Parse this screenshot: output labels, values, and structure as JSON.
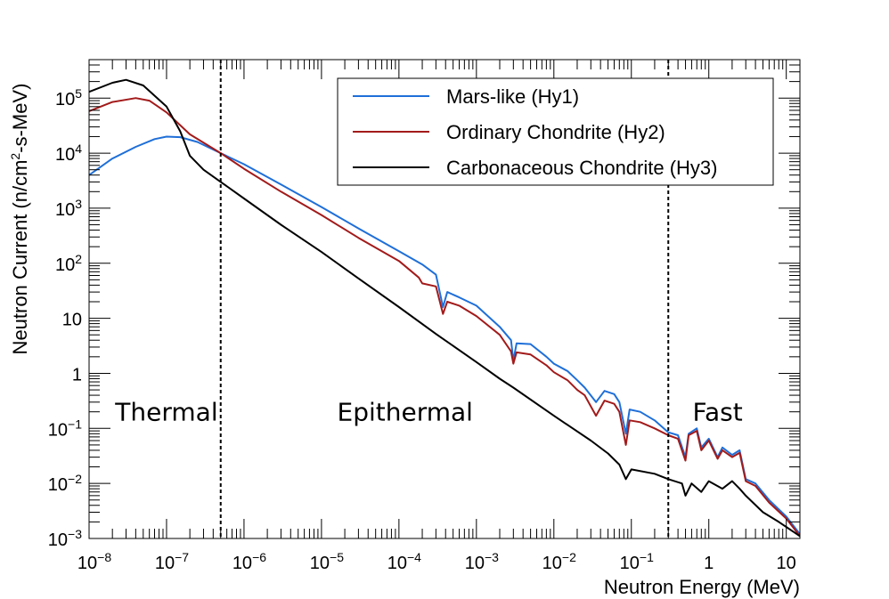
{
  "chart_data": {
    "type": "line",
    "xlabel": "Neutron Energy (MeV)",
    "ylabel_prefix": "Neutron Current (n/cm",
    "ylabel_sup": "2",
    "ylabel_suffix": "-s-MeV)",
    "xscale": "log",
    "yscale": "log",
    "xlim": [
      1e-08,
      15
    ],
    "ylim": [
      0.001,
      500000
    ],
    "x_ticks": [
      {
        "value": 1e-08,
        "base": "10",
        "exp": "−8"
      },
      {
        "value": 1e-07,
        "base": "10",
        "exp": "−7"
      },
      {
        "value": 1e-06,
        "base": "10",
        "exp": "−6"
      },
      {
        "value": 1e-05,
        "base": "10",
        "exp": "−5"
      },
      {
        "value": 0.0001,
        "base": "10",
        "exp": "−4"
      },
      {
        "value": 0.001,
        "base": "10",
        "exp": "−3"
      },
      {
        "value": 0.01,
        "base": "10",
        "exp": "−2"
      },
      {
        "value": 0.1,
        "base": "10",
        "exp": "−1"
      },
      {
        "value": 1,
        "base": "1",
        "exp": ""
      },
      {
        "value": 10,
        "base": "10",
        "exp": ""
      }
    ],
    "y_ticks": [
      {
        "value": 0.001,
        "base": "10",
        "exp": "−3"
      },
      {
        "value": 0.01,
        "base": "10",
        "exp": "−2"
      },
      {
        "value": 0.1,
        "base": "10",
        "exp": "−1"
      },
      {
        "value": 1,
        "base": "1",
        "exp": ""
      },
      {
        "value": 10,
        "base": "10",
        "exp": ""
      },
      {
        "value": 100,
        "base": "10",
        "exp": "2"
      },
      {
        "value": 1000,
        "base": "10",
        "exp": "3"
      },
      {
        "value": 10000,
        "base": "10",
        "exp": "4"
      },
      {
        "value": 100000,
        "base": "10",
        "exp": "5"
      }
    ],
    "vlines": [
      5e-07,
      0.3
    ],
    "regions": [
      {
        "label": "Thermal",
        "x": 1e-07,
        "y": 0.2
      },
      {
        "label": "Epithermal",
        "x": 0.00012,
        "y": 0.2
      },
      {
        "label": "Fast",
        "x": 1.3,
        "y": 0.2
      }
    ],
    "legend": {
      "position": "top-right"
    },
    "series": [
      {
        "name": "Mars-like (Hy1)",
        "color": "#1f6fd8",
        "points": [
          [
            1e-08,
            4000
          ],
          [
            2e-08,
            8000
          ],
          [
            4e-08,
            13000
          ],
          [
            7e-08,
            18000
          ],
          [
            1e-07,
            20000
          ],
          [
            1.5e-07,
            19500
          ],
          [
            2.5e-07,
            16000
          ],
          [
            5e-07,
            10000
          ],
          [
            1e-06,
            6300
          ],
          [
            3e-06,
            2700
          ],
          [
            1e-05,
            1050
          ],
          [
            3e-05,
            430
          ],
          [
            0.0001,
            165
          ],
          [
            0.0002,
            95
          ],
          [
            0.0003,
            62
          ],
          [
            0.00037,
            16
          ],
          [
            0.00042,
            30
          ],
          [
            0.0006,
            24
          ],
          [
            0.001,
            17
          ],
          [
            0.002,
            7
          ],
          [
            0.0028,
            4
          ],
          [
            0.003,
            1.7
          ],
          [
            0.0033,
            3.5
          ],
          [
            0.005,
            3.4
          ],
          [
            0.008,
            2
          ],
          [
            0.01,
            1.5
          ],
          [
            0.015,
            1.1
          ],
          [
            0.02,
            0.75
          ],
          [
            0.025,
            0.55
          ],
          [
            0.035,
            0.3
          ],
          [
            0.045,
            0.48
          ],
          [
            0.06,
            0.42
          ],
          [
            0.07,
            0.3
          ],
          [
            0.085,
            0.08
          ],
          [
            0.095,
            0.22
          ],
          [
            0.13,
            0.2
          ],
          [
            0.2,
            0.14
          ],
          [
            0.3,
            0.085
          ],
          [
            0.4,
            0.075
          ],
          [
            0.5,
            0.03
          ],
          [
            0.55,
            0.08
          ],
          [
            0.7,
            0.1
          ],
          [
            0.8,
            0.045
          ],
          [
            1.0,
            0.065
          ],
          [
            1.3,
            0.03
          ],
          [
            1.5,
            0.045
          ],
          [
            2.0,
            0.033
          ],
          [
            2.5,
            0.04
          ],
          [
            3,
            0.012
          ],
          [
            4,
            0.01
          ],
          [
            6,
            0.005
          ],
          [
            10,
            0.0025
          ],
          [
            15,
            0.0012
          ]
        ]
      },
      {
        "name": "Ordinary Chondrite (Hy2)",
        "color": "#a31a1a",
        "points": [
          [
            1e-08,
            58000
          ],
          [
            2e-08,
            85000
          ],
          [
            4e-08,
            100000
          ],
          [
            6e-08,
            90000
          ],
          [
            1e-07,
            55000
          ],
          [
            2e-07,
            22000
          ],
          [
            5e-07,
            10000
          ],
          [
            1e-06,
            5200
          ],
          [
            3e-06,
            2000
          ],
          [
            1e-05,
            750
          ],
          [
            3e-05,
            290
          ],
          [
            0.0001,
            110
          ],
          [
            0.00018,
            55
          ],
          [
            0.0002,
            43
          ],
          [
            0.0003,
            38
          ],
          [
            0.00037,
            12
          ],
          [
            0.00042,
            20
          ],
          [
            0.0006,
            17
          ],
          [
            0.001,
            11
          ],
          [
            0.002,
            5
          ],
          [
            0.0028,
            2.5
          ],
          [
            0.003,
            1.5
          ],
          [
            0.0033,
            2.4
          ],
          [
            0.005,
            2.2
          ],
          [
            0.008,
            1.4
          ],
          [
            0.01,
            1.05
          ],
          [
            0.015,
            0.75
          ],
          [
            0.02,
            0.5
          ],
          [
            0.025,
            0.4
          ],
          [
            0.035,
            0.17
          ],
          [
            0.045,
            0.32
          ],
          [
            0.06,
            0.28
          ],
          [
            0.07,
            0.2
          ],
          [
            0.085,
            0.05
          ],
          [
            0.095,
            0.14
          ],
          [
            0.13,
            0.13
          ],
          [
            0.2,
            0.1
          ],
          [
            0.3,
            0.075
          ],
          [
            0.4,
            0.065
          ],
          [
            0.5,
            0.026
          ],
          [
            0.55,
            0.075
          ],
          [
            0.7,
            0.09
          ],
          [
            0.8,
            0.04
          ],
          [
            1.0,
            0.06
          ],
          [
            1.3,
            0.028
          ],
          [
            1.5,
            0.04
          ],
          [
            2.0,
            0.03
          ],
          [
            2.5,
            0.036
          ],
          [
            3,
            0.011
          ],
          [
            4,
            0.009
          ],
          [
            6,
            0.0045
          ],
          [
            10,
            0.0023
          ],
          [
            15,
            0.0011
          ]
        ]
      },
      {
        "name": "Carbonaceous Chondrite (Hy3)",
        "color": "#000000",
        "points": [
          [
            1e-08,
            130000
          ],
          [
            2e-08,
            190000
          ],
          [
            3e-08,
            215000
          ],
          [
            5e-08,
            170000
          ],
          [
            1e-07,
            70000
          ],
          [
            1.5e-07,
            25000
          ],
          [
            2e-07,
            9000
          ],
          [
            3e-07,
            5000
          ],
          [
            5e-07,
            3000
          ],
          [
            1e-06,
            1500
          ],
          [
            3e-06,
            500
          ],
          [
            1e-05,
            160
          ],
          [
            3e-05,
            53
          ],
          [
            0.0001,
            16
          ],
          [
            0.0003,
            5.2
          ],
          [
            0.001,
            1.6
          ],
          [
            0.002,
            0.8
          ],
          [
            0.003,
            0.55
          ],
          [
            0.01,
            0.17
          ],
          [
            0.03,
            0.06
          ],
          [
            0.05,
            0.035
          ],
          [
            0.07,
            0.022
          ],
          [
            0.085,
            0.012
          ],
          [
            0.1,
            0.018
          ],
          [
            0.2,
            0.015
          ],
          [
            0.3,
            0.012
          ],
          [
            0.45,
            0.01
          ],
          [
            0.5,
            0.006
          ],
          [
            0.6,
            0.01
          ],
          [
            0.8,
            0.007
          ],
          [
            1.0,
            0.011
          ],
          [
            1.5,
            0.008
          ],
          [
            2.0,
            0.011
          ],
          [
            2.5,
            0.008
          ],
          [
            3,
            0.006
          ],
          [
            5,
            0.003
          ],
          [
            8,
            0.002
          ],
          [
            15,
            0.0011
          ]
        ]
      }
    ]
  }
}
